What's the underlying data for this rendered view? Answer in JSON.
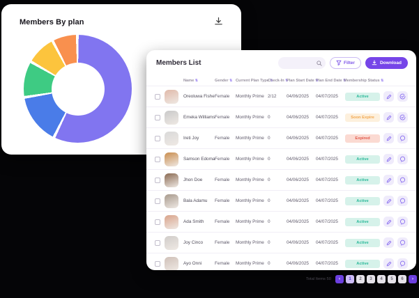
{
  "plan_card": {
    "title": "Members By plan"
  },
  "chart_data": {
    "type": "pie",
    "donut": true,
    "title": "Members By plan",
    "legend": "none",
    "labels_visible": false,
    "segments": [
      {
        "name": "segment-purple",
        "color": "#8175F0",
        "percent": 59
      },
      {
        "name": "segment-blue",
        "color": "#4A7CE8",
        "percent": 15
      },
      {
        "name": "segment-green",
        "color": "#3ECB83",
        "percent": 10.5
      },
      {
        "name": "segment-yellow",
        "color": "#FCC43D",
        "percent": 8.5
      },
      {
        "name": "segment-orange",
        "color": "#F9904E",
        "percent": 7
      }
    ]
  },
  "list_card": {
    "title": "Members List",
    "search_placeholder": "",
    "filter_label": "Filter",
    "download_label": "Download",
    "sort_icon": "⇅",
    "columns": [
      {
        "label": "Name"
      },
      {
        "label": "Gender"
      },
      {
        "label": "Current Plan Type"
      },
      {
        "label": "Check-In"
      },
      {
        "label": "Plan Start Date"
      },
      {
        "label": "Plan End Date"
      },
      {
        "label": "Membership Status"
      }
    ],
    "rows": [
      {
        "name": "Oreoluwa Fisher",
        "gender": "Female",
        "plan": "Monthly Prime",
        "check_in": "2/12",
        "start": "04/06/2025",
        "end": "04/07/2025",
        "status": "Active",
        "status_type": "active",
        "action2": "check",
        "avatar": "#e0b9a9"
      },
      {
        "name": "Emeka Williams",
        "gender": "Female",
        "plan": "Monthly Prime",
        "check_in": "0",
        "start": "04/06/2025",
        "end": "04/07/2025",
        "status": "Soon Expire",
        "status_type": "soon",
        "action2": "check",
        "avatar": "#c9c9c9"
      },
      {
        "name": "Ireti Joy",
        "gender": "Female",
        "plan": "Monthly Prime",
        "check_in": "0",
        "start": "04/06/2025",
        "end": "04/07/2025",
        "status": "Expired",
        "status_type": "expired",
        "action2": "chat",
        "avatar": "#d9d9d9"
      },
      {
        "name": "Samson Edoma",
        "gender": "Female",
        "plan": "Monthly Prime",
        "check_in": "0",
        "start": "04/06/2025",
        "end": "04/07/2025",
        "status": "Active",
        "status_type": "active",
        "action2": "chat",
        "avatar": "#c98d4e"
      },
      {
        "name": "Jhon Doe",
        "gender": "Female",
        "plan": "Monthly Prime",
        "check_in": "0",
        "start": "04/06/2025",
        "end": "04/07/2025",
        "status": "Active",
        "status_type": "active",
        "action2": "chat",
        "avatar": "#8a6a52"
      },
      {
        "name": "Bala Adamu",
        "gender": "Female",
        "plan": "Monthly Prime",
        "check_in": "0",
        "start": "04/06/2025",
        "end": "04/07/2025",
        "status": "Active",
        "status_type": "active",
        "action2": "chat",
        "avatar": "#a89a8d"
      },
      {
        "name": "Ada Smith",
        "gender": "Female",
        "plan": "Monthly Prime",
        "check_in": "0",
        "start": "04/06/2025",
        "end": "04/07/2025",
        "status": "Active",
        "status_type": "active",
        "action2": "chat",
        "avatar": "#d9a38a"
      },
      {
        "name": "Joy Cinco",
        "gender": "Female",
        "plan": "Monthly Prime",
        "check_in": "0",
        "start": "04/06/2025",
        "end": "04/07/2025",
        "status": "Active",
        "status_type": "active",
        "action2": "chat",
        "avatar": "#d0ccc9"
      },
      {
        "name": "Ayo Onni",
        "gender": "Female",
        "plan": "Monthly Prime",
        "check_in": "0",
        "start": "04/06/2025",
        "end": "04/07/2025",
        "status": "Active",
        "status_type": "active",
        "action2": "chat",
        "avatar": "#cfc0b8"
      }
    ]
  },
  "pagination": {
    "total_label": "Total Items 50",
    "prev": "‹",
    "next": "›",
    "pages": [
      "1",
      "2",
      "3",
      "4",
      "5",
      "6"
    ],
    "active_page": "1"
  },
  "colors": {
    "accent": "#7645E8",
    "card_bg": "#ffffff",
    "page_bg": "#050507",
    "active_bg": "#D6F2EA",
    "active_text": "#2BB99A",
    "soon_bg": "#FDF0DD",
    "soon_text": "#F2A74F",
    "expired_bg": "#FBDAD2",
    "expired_text": "#E2584A"
  }
}
